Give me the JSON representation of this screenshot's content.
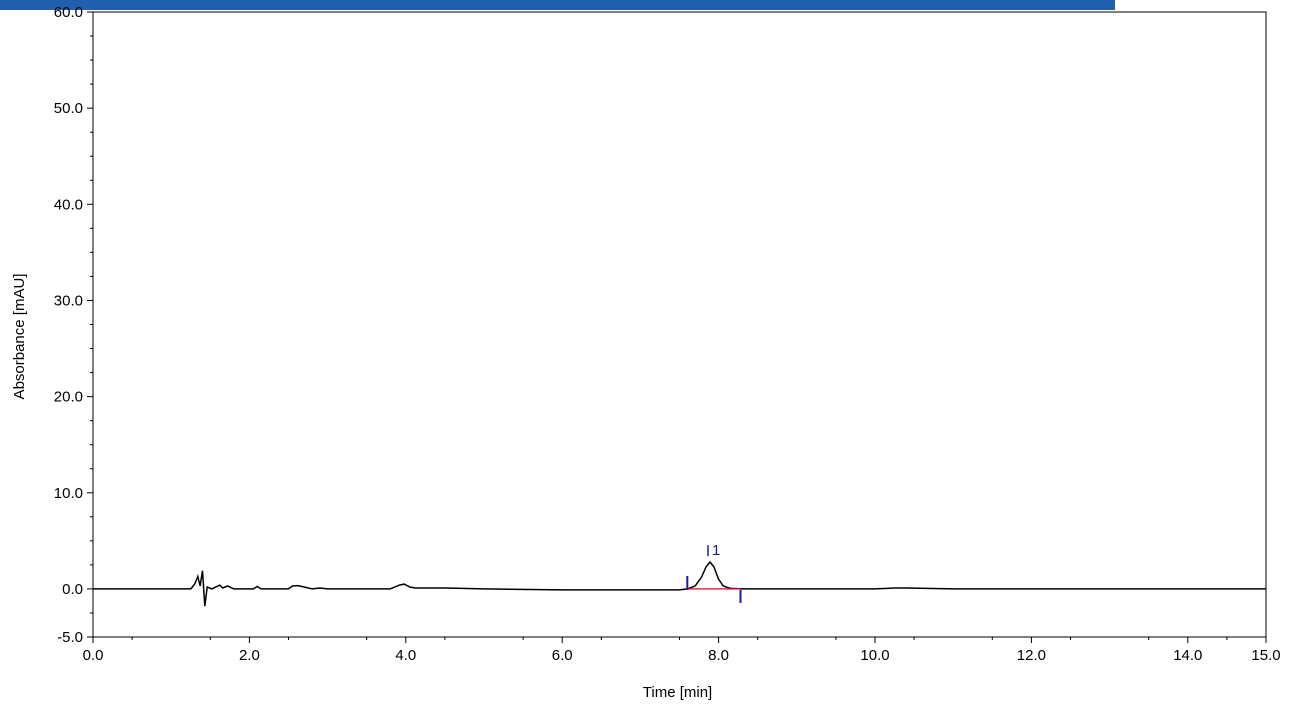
{
  "chart_data": {
    "type": "line",
    "title": "",
    "xlabel": "Time [min]",
    "ylabel": "Absorbance [mAU]",
    "xlim": [
      0,
      15
    ],
    "ylim": [
      -5,
      60
    ],
    "x_ticks": [
      {
        "value": 0,
        "label": "0.0"
      },
      {
        "value": 2,
        "label": "2.0"
      },
      {
        "value": 4,
        "label": "4.0"
      },
      {
        "value": 6,
        "label": "6.0"
      },
      {
        "value": 8,
        "label": "8.0"
      },
      {
        "value": 10,
        "label": "10.0"
      },
      {
        "value": 12,
        "label": "12.0"
      },
      {
        "value": 14,
        "label": "14.0"
      },
      {
        "value": 15,
        "label": "15.0"
      }
    ],
    "y_ticks": [
      {
        "value": -5,
        "label": "-5.0"
      },
      {
        "value": 0,
        "label": "0.0"
      },
      {
        "value": 10,
        "label": "10.0"
      },
      {
        "value": 20,
        "label": "20.0"
      },
      {
        "value": 30,
        "label": "30.0"
      },
      {
        "value": 40,
        "label": "40.0"
      },
      {
        "value": 50,
        "label": "50.0"
      },
      {
        "value": 60,
        "label": "60.0"
      }
    ],
    "grid": false,
    "series": [
      {
        "color": "#000000",
        "points": [
          [
            0.0,
            0.0
          ],
          [
            1.0,
            0.0
          ],
          [
            1.25,
            0.0
          ],
          [
            1.3,
            0.5
          ],
          [
            1.34,
            1.3
          ],
          [
            1.37,
            0.3
          ],
          [
            1.4,
            1.9
          ],
          [
            1.43,
            -1.8
          ],
          [
            1.46,
            0.2
          ],
          [
            1.52,
            0.0
          ],
          [
            1.62,
            0.4
          ],
          [
            1.66,
            0.1
          ],
          [
            1.72,
            0.3
          ],
          [
            1.8,
            0.0
          ],
          [
            2.05,
            0.0
          ],
          [
            2.1,
            0.25
          ],
          [
            2.15,
            0.0
          ],
          [
            2.5,
            0.0
          ],
          [
            2.55,
            0.3
          ],
          [
            2.62,
            0.35
          ],
          [
            2.7,
            0.2
          ],
          [
            2.8,
            0.0
          ],
          [
            2.9,
            0.1
          ],
          [
            3.0,
            0.0
          ],
          [
            3.5,
            0.0
          ],
          [
            3.8,
            0.0
          ],
          [
            3.92,
            0.4
          ],
          [
            3.98,
            0.5
          ],
          [
            4.05,
            0.2
          ],
          [
            4.12,
            0.1
          ],
          [
            4.5,
            0.1
          ],
          [
            5.0,
            0.0
          ],
          [
            6.0,
            -0.1
          ],
          [
            7.0,
            -0.1
          ],
          [
            7.5,
            -0.1
          ],
          [
            7.6,
            0.0
          ],
          [
            7.7,
            0.3
          ],
          [
            7.78,
            1.2
          ],
          [
            7.84,
            2.3
          ],
          [
            7.89,
            2.8
          ],
          [
            7.94,
            2.3
          ],
          [
            8.0,
            1.0
          ],
          [
            8.06,
            0.3
          ],
          [
            8.15,
            0.05
          ],
          [
            8.3,
            0.0
          ],
          [
            9.0,
            0.0
          ],
          [
            10.0,
            0.0
          ],
          [
            10.25,
            0.1
          ],
          [
            10.4,
            0.1
          ],
          [
            11.0,
            0.0
          ],
          [
            12.0,
            0.0
          ],
          [
            13.0,
            0.0
          ],
          [
            14.0,
            0.0
          ],
          [
            15.0,
            0.0
          ]
        ]
      },
      {
        "color": "#e0002a",
        "points": [
          [
            7.6,
            0.0
          ],
          [
            8.28,
            0.0
          ]
        ]
      }
    ],
    "peaks": [
      {
        "label": "1",
        "x": 7.89,
        "start_x": 7.6,
        "end_x": 8.28
      }
    ],
    "marker_color": "#1a1aa6"
  }
}
